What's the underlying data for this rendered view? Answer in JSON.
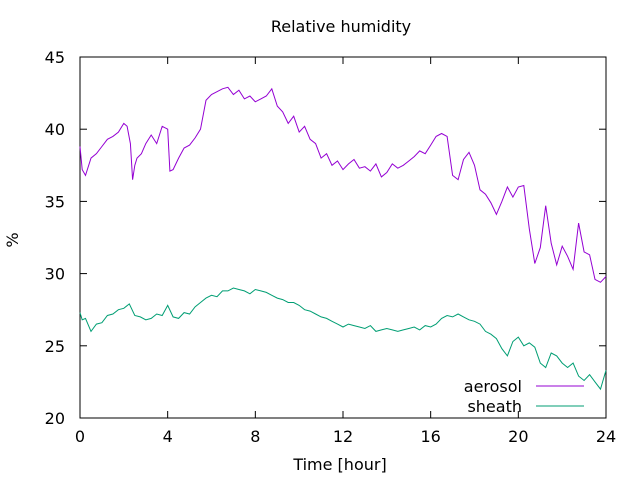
{
  "chart_data": {
    "type": "line",
    "title": "Relative humidity",
    "xlabel": "Time [hour]",
    "ylabel": "%",
    "xlim": [
      0,
      24
    ],
    "ylim": [
      20,
      45
    ],
    "xticks": [
      0,
      4,
      8,
      12,
      16,
      20,
      24
    ],
    "yticks": [
      20,
      25,
      30,
      35,
      40,
      45
    ],
    "grid": false,
    "legend_position": "bottom-right",
    "series": [
      {
        "name": "aerosol",
        "color": "#9400d3",
        "x": [
          0,
          0.1,
          0.25,
          0.5,
          0.75,
          1,
          1.25,
          1.5,
          1.75,
          2,
          2.15,
          2.3,
          2.4,
          2.5,
          2.6,
          2.8,
          3,
          3.25,
          3.5,
          3.75,
          4,
          4.1,
          4.25,
          4.5,
          4.75,
          5,
          5.25,
          5.5,
          5.75,
          6,
          6.25,
          6.5,
          6.75,
          7,
          7.25,
          7.5,
          7.75,
          8,
          8.25,
          8.5,
          8.75,
          9,
          9.25,
          9.5,
          9.75,
          10,
          10.25,
          10.5,
          10.75,
          11,
          11.25,
          11.5,
          11.75,
          12,
          12.25,
          12.5,
          12.75,
          13,
          13.25,
          13.5,
          13.75,
          14,
          14.25,
          14.5,
          14.75,
          15,
          15.25,
          15.5,
          15.75,
          16,
          16.25,
          16.5,
          16.75,
          17,
          17.25,
          17.5,
          17.75,
          18,
          18.25,
          18.5,
          18.75,
          19,
          19.25,
          19.5,
          19.75,
          20,
          20.25,
          20.5,
          20.75,
          21,
          21.25,
          21.5,
          21.75,
          22,
          22.25,
          22.5,
          22.75,
          23,
          23.25,
          23.5,
          23.75,
          24
        ],
        "values": [
          38.8,
          37.2,
          36.8,
          38.0,
          38.3,
          38.8,
          39.3,
          39.5,
          39.8,
          40.4,
          40.2,
          39.0,
          36.5,
          37.5,
          38.0,
          38.3,
          39.0,
          39.6,
          39.0,
          40.2,
          40.0,
          37.1,
          37.2,
          38.0,
          38.7,
          38.9,
          39.4,
          40.0,
          42.0,
          42.4,
          42.6,
          42.8,
          42.9,
          42.4,
          42.7,
          42.1,
          42.3,
          41.9,
          42.1,
          42.3,
          42.8,
          41.6,
          41.2,
          40.4,
          40.9,
          39.8,
          40.2,
          39.3,
          39.0,
          38.0,
          38.3,
          37.5,
          37.8,
          37.2,
          37.6,
          37.9,
          37.3,
          37.4,
          37.1,
          37.6,
          36.7,
          37.0,
          37.6,
          37.3,
          37.5,
          37.8,
          38.1,
          38.5,
          38.3,
          38.9,
          39.5,
          39.7,
          39.5,
          36.8,
          36.5,
          37.9,
          38.4,
          37.5,
          35.8,
          35.5,
          34.9,
          34.1,
          35.0,
          36.0,
          35.3,
          36.0,
          36.1,
          33.1,
          30.7,
          31.8,
          34.7,
          32.1,
          30.6,
          31.9,
          31.2,
          30.3,
          33.5,
          31.5,
          31.3,
          29.6,
          29.4,
          29.8
        ],
        "legend_label": "aerosol"
      },
      {
        "name": "sheath",
        "color": "#009e73",
        "x": [
          0,
          0.1,
          0.25,
          0.5,
          0.75,
          1,
          1.25,
          1.5,
          1.75,
          2,
          2.25,
          2.5,
          2.75,
          3,
          3.25,
          3.5,
          3.75,
          4,
          4.25,
          4.5,
          4.75,
          5,
          5.25,
          5.5,
          5.75,
          6,
          6.25,
          6.5,
          6.75,
          7,
          7.25,
          7.5,
          7.75,
          8,
          8.25,
          8.5,
          8.75,
          9,
          9.25,
          9.5,
          9.75,
          10,
          10.25,
          10.5,
          10.75,
          11,
          11.25,
          11.5,
          11.75,
          12,
          12.25,
          12.5,
          12.75,
          13,
          13.25,
          13.5,
          13.75,
          14,
          14.25,
          14.5,
          14.75,
          15,
          15.25,
          15.5,
          15.75,
          16,
          16.25,
          16.5,
          16.75,
          17,
          17.25,
          17.5,
          17.75,
          18,
          18.25,
          18.5,
          18.75,
          19,
          19.25,
          19.5,
          19.75,
          20,
          20.25,
          20.5,
          20.75,
          21,
          21.25,
          21.5,
          21.75,
          22,
          22.25,
          22.5,
          22.75,
          23,
          23.25,
          23.5,
          23.75,
          24
        ],
        "values": [
          27.3,
          26.8,
          26.9,
          26.0,
          26.5,
          26.6,
          27.1,
          27.2,
          27.5,
          27.6,
          27.9,
          27.1,
          27.0,
          26.8,
          26.9,
          27.2,
          27.1,
          27.8,
          27.0,
          26.9,
          27.3,
          27.2,
          27.7,
          28.0,
          28.3,
          28.5,
          28.4,
          28.8,
          28.8,
          29.0,
          28.9,
          28.8,
          28.6,
          28.9,
          28.8,
          28.7,
          28.5,
          28.3,
          28.2,
          28.0,
          28.0,
          27.8,
          27.5,
          27.4,
          27.2,
          27.0,
          26.9,
          26.7,
          26.5,
          26.3,
          26.5,
          26.4,
          26.3,
          26.2,
          26.4,
          26.0,
          26.1,
          26.2,
          26.1,
          26.0,
          26.1,
          26.2,
          26.3,
          26.1,
          26.4,
          26.3,
          26.5,
          26.9,
          27.1,
          27.0,
          27.2,
          27.0,
          26.8,
          26.7,
          26.5,
          26.0,
          25.8,
          25.5,
          24.8,
          24.3,
          25.3,
          25.6,
          25.0,
          25.2,
          24.9,
          23.8,
          23.5,
          24.5,
          24.3,
          23.8,
          23.5,
          23.8,
          22.9,
          22.6,
          23.0,
          22.5,
          22.0,
          23.3
        ],
        "legend_label": "sheath"
      }
    ]
  }
}
